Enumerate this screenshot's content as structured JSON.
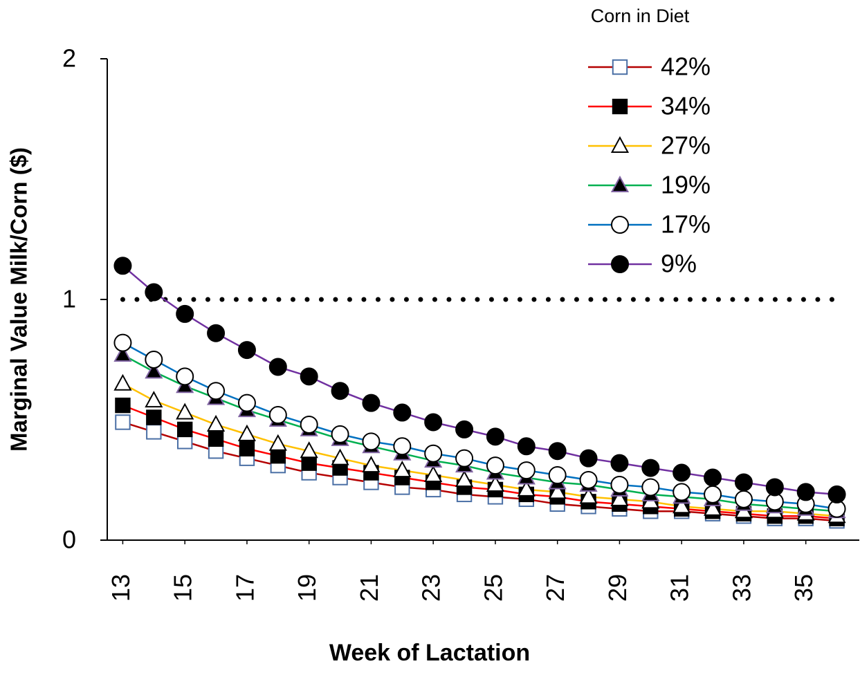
{
  "chart_data": {
    "type": "line",
    "y_label": "Marginal  Value Milk/Corn  ($)",
    "x_label": "Week of Lactation",
    "legend_title": "Corn in Diet",
    "legend_position": "upper right",
    "x": [
      13,
      14,
      15,
      16,
      17,
      18,
      19,
      20,
      21,
      22,
      23,
      24,
      25,
      26,
      27,
      28,
      29,
      30,
      31,
      32,
      33,
      34,
      35,
      36
    ],
    "xlim": [
      12.5,
      36.5
    ],
    "xticks": [
      13,
      15,
      17,
      19,
      21,
      23,
      25,
      27,
      29,
      31,
      33,
      35
    ],
    "ylim": [
      0,
      2
    ],
    "yticks": [
      0,
      1,
      2
    ],
    "reference_line": 1,
    "series": [
      {
        "name": "42%",
        "color": "#b40000",
        "marker": "square",
        "marker_fill": "#ffffff",
        "marker_stroke": "#4a6fa5",
        "values": [
          0.49,
          0.45,
          0.41,
          0.37,
          0.34,
          0.31,
          0.28,
          0.26,
          0.24,
          0.22,
          0.21,
          0.19,
          0.18,
          0.17,
          0.15,
          0.14,
          0.13,
          0.12,
          0.12,
          0.11,
          0.1,
          0.09,
          0.09,
          0.08
        ]
      },
      {
        "name": "34%",
        "color": "#ff0000",
        "marker": "square",
        "marker_fill": "#000000",
        "marker_stroke": "#000000",
        "values": [
          0.56,
          0.51,
          0.46,
          0.42,
          0.38,
          0.35,
          0.32,
          0.3,
          0.28,
          0.26,
          0.24,
          0.22,
          0.21,
          0.19,
          0.18,
          0.16,
          0.15,
          0.14,
          0.13,
          0.12,
          0.11,
          0.1,
          0.1,
          0.09
        ]
      },
      {
        "name": "27%",
        "color": "#ffc000",
        "marker": "triangle",
        "marker_fill": "#ffffff",
        "marker_stroke": "#000000",
        "values": [
          0.65,
          0.58,
          0.53,
          0.48,
          0.44,
          0.4,
          0.37,
          0.34,
          0.31,
          0.29,
          0.27,
          0.25,
          0.23,
          0.21,
          0.2,
          0.18,
          0.17,
          0.16,
          0.14,
          0.13,
          0.12,
          0.12,
          0.11,
          0.1
        ]
      },
      {
        "name": "19%",
        "color": "#00b050",
        "marker": "triangle",
        "marker_fill": "#000000",
        "marker_stroke": "#8064a2",
        "values": [
          0.77,
          0.7,
          0.64,
          0.59,
          0.54,
          0.5,
          0.46,
          0.42,
          0.39,
          0.36,
          0.33,
          0.31,
          0.28,
          0.26,
          0.24,
          0.23,
          0.21,
          0.19,
          0.18,
          0.17,
          0.15,
          0.14,
          0.13,
          0.12
        ]
      },
      {
        "name": "17%",
        "color": "#0070c0",
        "marker": "circle",
        "marker_fill": "#ffffff",
        "marker_stroke": "#000000",
        "values": [
          0.82,
          0.75,
          0.68,
          0.62,
          0.57,
          0.52,
          0.48,
          0.44,
          0.41,
          0.39,
          0.36,
          0.34,
          0.31,
          0.29,
          0.27,
          0.25,
          0.23,
          0.22,
          0.2,
          0.19,
          0.17,
          0.16,
          0.15,
          0.13
        ]
      },
      {
        "name": "9%",
        "color": "#7030a0",
        "marker": "circle",
        "marker_fill": "#000000",
        "marker_stroke": "#000000",
        "values": [
          1.14,
          1.03,
          0.94,
          0.86,
          0.79,
          0.72,
          0.68,
          0.62,
          0.57,
          0.53,
          0.49,
          0.46,
          0.43,
          0.39,
          0.37,
          0.34,
          0.32,
          0.3,
          0.28,
          0.26,
          0.24,
          0.22,
          0.2,
          0.19
        ]
      }
    ]
  }
}
